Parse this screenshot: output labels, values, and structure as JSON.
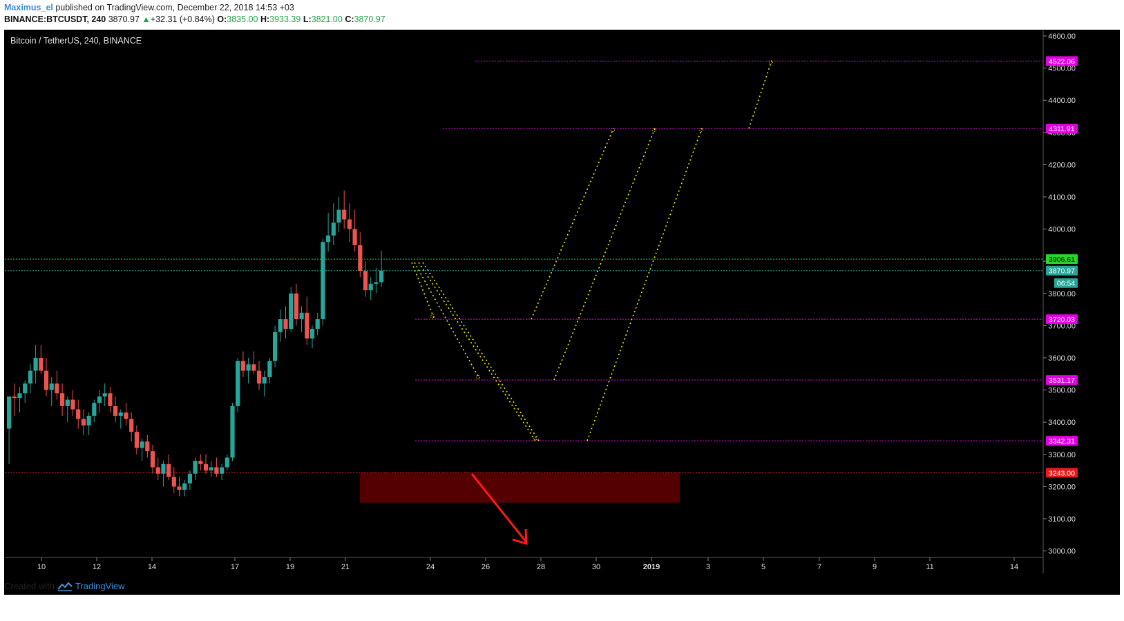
{
  "header": {
    "author": "Maximus_el",
    "published_text": " published on TradingView.com, December 22, 2018 14:53 +03",
    "symbol": "BINANCE:BTCUSDT, 240",
    "last": "3870.97",
    "change": "+32.31 (+0.84%)",
    "o_label": "O:",
    "o_value": "3835.00",
    "h_label": "H:",
    "h_value": "3933.39",
    "l_label": "L:",
    "l_value": "3821.00",
    "c_label": "C:",
    "c_value": "3870.97"
  },
  "chart_title": "Bitcoin / TetherUS, 240, BINANCE",
  "footer": {
    "created_with": "Created with",
    "brand": "TradingView"
  },
  "chart_data": {
    "type": "candlestick",
    "title": "Bitcoin / TetherUS, 240, BINANCE",
    "ylim": [
      2990,
      4610
    ],
    "y_ticks": [
      "3000.00",
      "3100.00",
      "3200.00",
      "3300.00",
      "3400.00",
      "3500.00",
      "3600.00",
      "3700.00",
      "3800.00",
      "3900.00",
      "4000.00",
      "4100.00",
      "4200.00",
      "4300.00",
      "4400.00",
      "4500.00",
      "4600.00"
    ],
    "x_ticks": [
      "10",
      "12",
      "14",
      "17",
      "19",
      "21",
      "24",
      "26",
      "28",
      "30",
      "2019",
      "3",
      "5",
      "7",
      "9",
      "11",
      "14"
    ],
    "horizontal_levels": [
      {
        "price": 4522.06,
        "label": "4522.06",
        "color": "#e400e4",
        "style": "dotted"
      },
      {
        "price": 4311.91,
        "label": "4311.91",
        "color": "#e400e4",
        "style": "dotted"
      },
      {
        "price": 3906.61,
        "label": "3906.61",
        "color": "#2bd62b",
        "style": "dotted"
      },
      {
        "price": 3870.97,
        "label": "3870.97",
        "color": "#26a69a",
        "style": "dotted",
        "countdown": "06:54"
      },
      {
        "price": 3720.03,
        "label": "3720.03",
        "color": "#e400e4",
        "style": "dotted"
      },
      {
        "price": 3531.17,
        "label": "3531.17",
        "color": "#e400e4",
        "style": "dotted"
      },
      {
        "price": 3342.31,
        "label": "3342.31",
        "color": "#e400e4",
        "style": "dotted"
      },
      {
        "price": 3243.0,
        "label": "3243.00",
        "color": "#e31b1b",
        "style": "dotted"
      }
    ],
    "colors": {
      "up": "#26a69a",
      "down": "#ef5350",
      "projection": "#f0f000",
      "zone": "#550000",
      "arrow": "#ff1a1a"
    },
    "zone": {
      "price_top": 3243,
      "price_bottom": 3150,
      "x_start": "22",
      "x_end": "2019+"
    }
  }
}
